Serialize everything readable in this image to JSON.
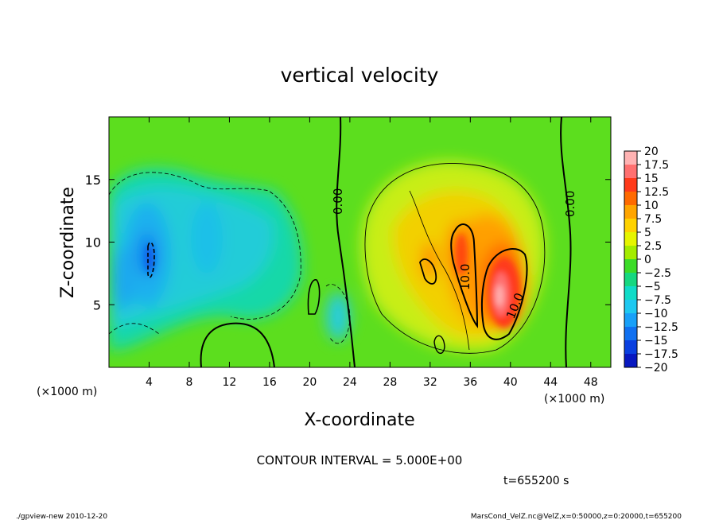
{
  "chart_data": {
    "type": "heatmap",
    "title": "vertical velocity",
    "xlabel": "X-coordinate",
    "ylabel": "Z-coordinate",
    "x_unit": "(×1000 m)",
    "y_unit": "(×1000 m)",
    "xlim": [
      0,
      50
    ],
    "ylim": [
      0,
      20
    ],
    "x_ticks": [
      4,
      8,
      12,
      16,
      20,
      24,
      28,
      32,
      36,
      40,
      44,
      48
    ],
    "y_ticks": [
      5,
      10,
      15
    ],
    "colorbar": {
      "levels": [
        "20",
        "17.5",
        "15",
        "12.5",
        "10",
        "7.5",
        "5",
        "2.5",
        "0",
        "−2.5",
        "−5",
        "−7.5",
        "−10",
        "−12.5",
        "−15",
        "−17.5",
        "−20"
      ],
      "colors": [
        "#ffb3b3",
        "#ff7070",
        "#ff3a1a",
        "#ff6a00",
        "#ffa500",
        "#ffd200",
        "#e6f500",
        "#a4ec00",
        "#3cdc28",
        "#16d880",
        "#10dcc8",
        "#1ec8f0",
        "#18a0f8",
        "#1070f0",
        "#0a40e0",
        "#0818c0",
        "#7a18c8"
      ]
    },
    "contour_labels": [
      "0.00",
      "0.00",
      "10.0",
      "10.0"
    ],
    "contour_interval": "CONTOUR INTERVAL = 5.000E+00",
    "time": "t=655200 s"
  },
  "footer": {
    "left": "./gpview-new   2010-12-20",
    "right": "MarsCond_VelZ.nc@VelZ,x=0:50000,z=0:20000,t=655200"
  }
}
